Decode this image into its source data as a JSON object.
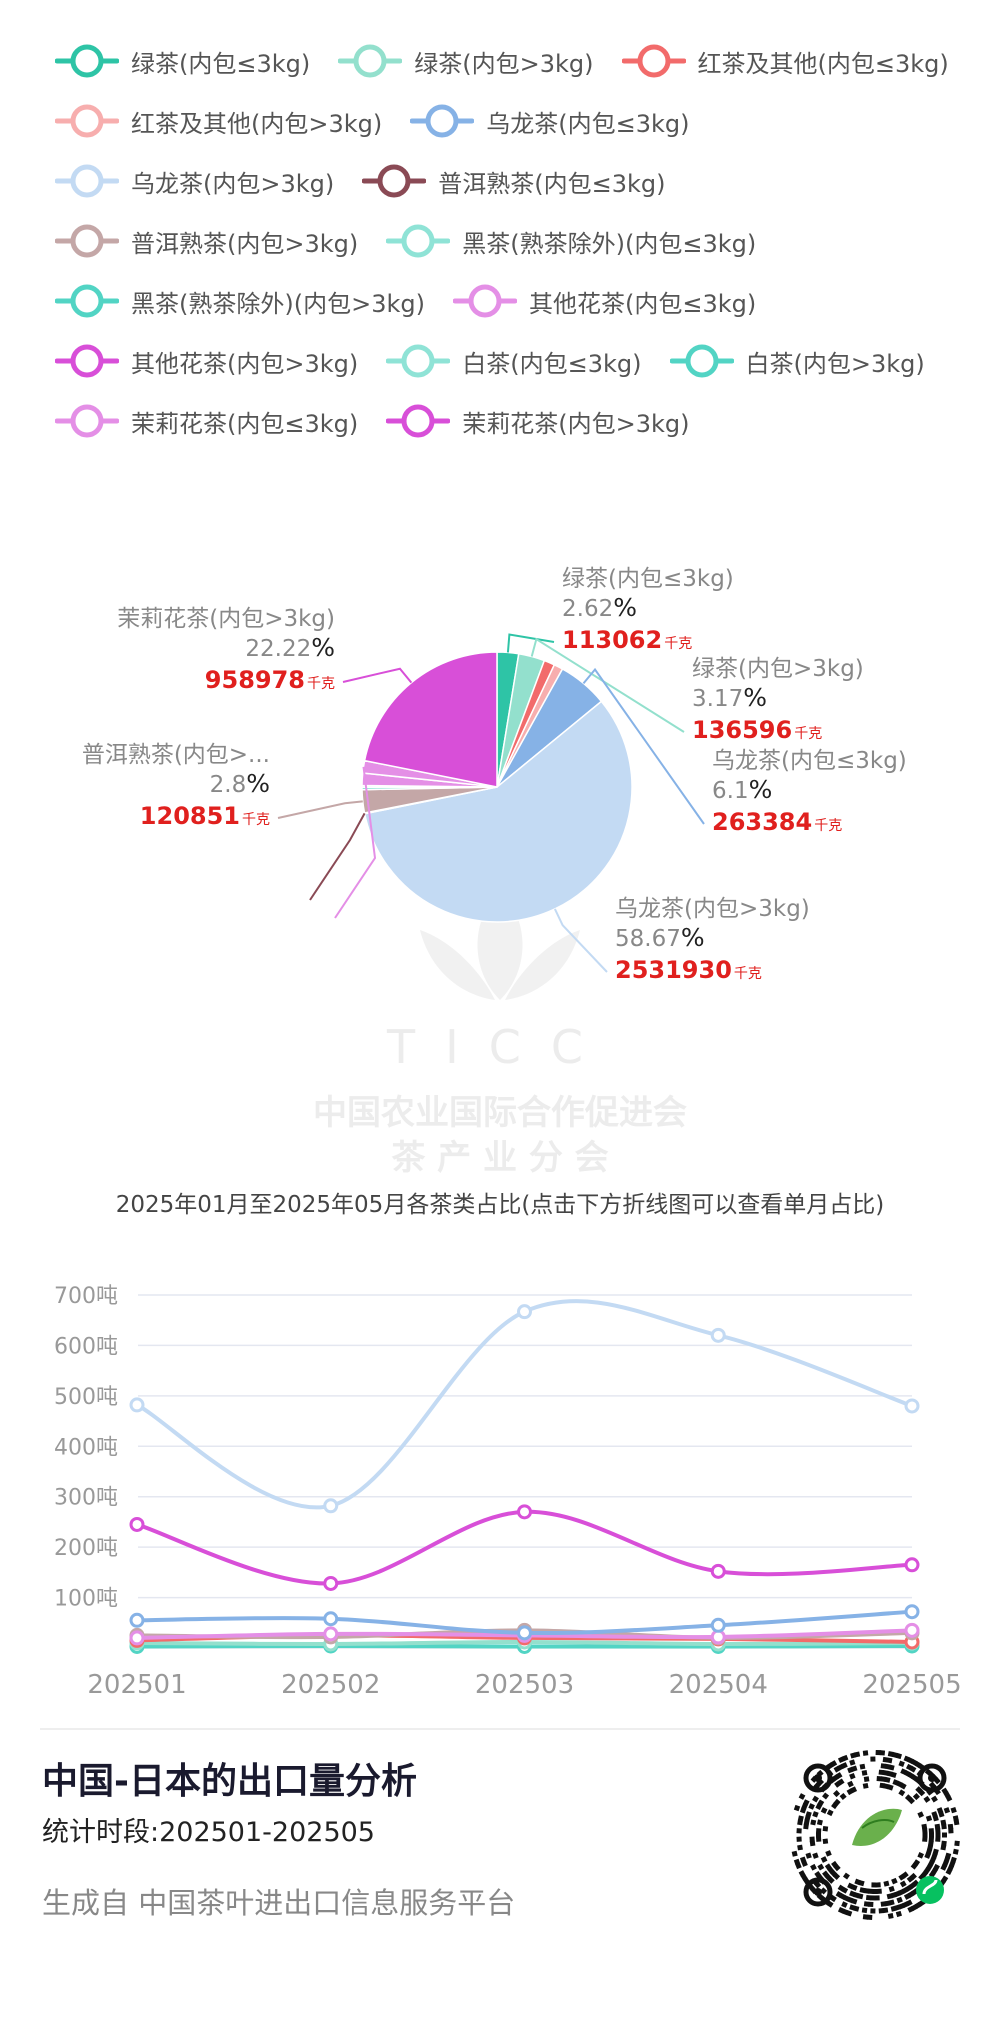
{
  "legend": [
    {
      "label": "绿茶(内包≤3kg)",
      "color": "#2ec4a6"
    },
    {
      "label": "绿茶(内包>3kg)",
      "color": "#93e0cd"
    },
    {
      "label": "红茶及其他(内包≤3kg)",
      "color": "#f26b6b"
    },
    {
      "label": "红茶及其他(内包>3kg)",
      "color": "#f7aeae"
    },
    {
      "label": "乌龙茶(内包≤3kg)",
      "color": "#86b2e6"
    },
    {
      "label": "乌龙茶(内包>3kg)",
      "color": "#c3daf3"
    },
    {
      "label": "普洱熟茶(内包≤3kg)",
      "color": "#8a4a55"
    },
    {
      "label": "普洱熟茶(内包>3kg)",
      "color": "#c4a7a7"
    },
    {
      "label": "黑茶(熟茶除外)(内包≤3kg)",
      "color": "#8fe3d6"
    },
    {
      "label": "黑茶(熟茶除外)(内包>3kg)",
      "color": "#52d4c4"
    },
    {
      "label": "其他花茶(内包≤3kg)",
      "color": "#e48fe6"
    },
    {
      "label": "其他花茶(内包>3kg)",
      "color": "#d84fd8"
    },
    {
      "label": "白茶(内包≤3kg)",
      "color": "#8fe3d6"
    },
    {
      "label": "白茶(内包>3kg)",
      "color": "#52d4c4"
    },
    {
      "label": "茉莉花茶(内包≤3kg)",
      "color": "#e48fe6"
    },
    {
      "label": "茉莉花茶(内包>3kg)",
      "color": "#d84fd8"
    }
  ],
  "chart_data": [
    {
      "type": "pie",
      "title": "2025年01月至2025年05月各茶类占比(点击下方折线图可以查看单月占比)",
      "unit": "千克",
      "percent_sign": "%",
      "slices": [
        {
          "name": "绿茶(内包≤3kg)",
          "percent": 2.62,
          "value": 113062,
          "color": "#2ec4a6",
          "labeled": true
        },
        {
          "name": "绿茶(内包>3kg)",
          "percent": 3.17,
          "value": 136596,
          "color": "#93e0cd",
          "labeled": true
        },
        {
          "name": "红茶及其他(内包≤3kg)",
          "percent": 1.3,
          "color": "#f26b6b",
          "labeled": false
        },
        {
          "name": "红茶及其他(内包>3kg)",
          "percent": 1.1,
          "color": "#f7aeae",
          "labeled": false
        },
        {
          "name": "乌龙茶(内包≤3kg)",
          "percent": 6.1,
          "value": 263384,
          "color": "#86b2e6",
          "labeled": true
        },
        {
          "name": "乌龙茶(内包>3kg)",
          "percent": 58.67,
          "value": 2531930,
          "color": "#c3daf3",
          "labeled": true
        },
        {
          "name": "普洱熟茶(内包≤3kg)",
          "percent": 0.1,
          "color": "#8a4a55",
          "labeled": false
        },
        {
          "name": "普洱熟茶(内包>3kg)",
          "percent": 2.8,
          "value": 120851,
          "display_name": "普洱熟茶(内包>...",
          "color": "#c4a7a7",
          "labeled": true
        },
        {
          "name": "黑茶(熟茶除外)(内包≤3kg)",
          "percent": 0.3,
          "color": "#8fe3d6",
          "labeled": false
        },
        {
          "name": "黑茶(熟茶除外)(内包>3kg)",
          "percent": 0.2,
          "color": "#52d4c4",
          "labeled": false
        },
        {
          "name": "其他花茶(内包≤3kg)",
          "percent": 1.5,
          "color": "#e48fe6",
          "labeled": false
        },
        {
          "name": "其他花茶(内包>3kg)",
          "percent": 1.5,
          "color": "#e48fe6",
          "labeled": false
        },
        {
          "name": "茉莉花茶(内包>3kg)",
          "percent": 22.22,
          "value": 958978,
          "color": "#d84fd8",
          "labeled": true
        }
      ]
    },
    {
      "type": "line",
      "x": [
        "202501",
        "202502",
        "202503",
        "202504",
        "202505"
      ],
      "yticks": [
        "100吨",
        "200吨",
        "300吨",
        "400吨",
        "500吨",
        "600吨",
        "700吨"
      ],
      "ylim": [
        0,
        700
      ],
      "grid": true,
      "series": [
        {
          "name": "乌龙茶(内包>3kg)",
          "color": "#c3daf3",
          "values": [
            482,
            282,
            667,
            620,
            480
          ]
        },
        {
          "name": "其他花茶(内包>3kg)",
          "color": "#d84fd8",
          "values": [
            245,
            128,
            270,
            152,
            165
          ]
        },
        {
          "name": "乌龙茶(内包≤3kg)",
          "color": "#86b2e6",
          "values": [
            55,
            58,
            30,
            45,
            72
          ]
        },
        {
          "name": "茉莉花茶(内包≤3kg)",
          "color": "#e48fe6",
          "values": [
            20,
            28,
            25,
            22,
            35
          ]
        },
        {
          "name": "普洱熟茶(内包>3kg)",
          "color": "#c4a7a7",
          "values": [
            25,
            22,
            35,
            20,
            30
          ]
        },
        {
          "name": "红茶及其他(内包≤3kg)",
          "color": "#f26b6b",
          "values": [
            15,
            25,
            20,
            18,
            12
          ]
        },
        {
          "name": "绿茶(内包>3kg)",
          "color": "#93e0cd",
          "values": [
            10,
            8,
            12,
            8,
            10
          ]
        },
        {
          "name": "白茶(内包>3kg)",
          "color": "#52d4c4",
          "values": [
            3,
            4,
            3,
            3,
            4
          ]
        }
      ]
    }
  ],
  "watermark": {
    "brand": "TICC",
    "line1": "中国农业国际合作促进会",
    "line2": "茶 产 业 分 会"
  },
  "report": {
    "title": "中国-日本的出口量分析",
    "period": "统计时段:202501-202505",
    "source": "生成自 中国茶叶进出口信息服务平台"
  }
}
